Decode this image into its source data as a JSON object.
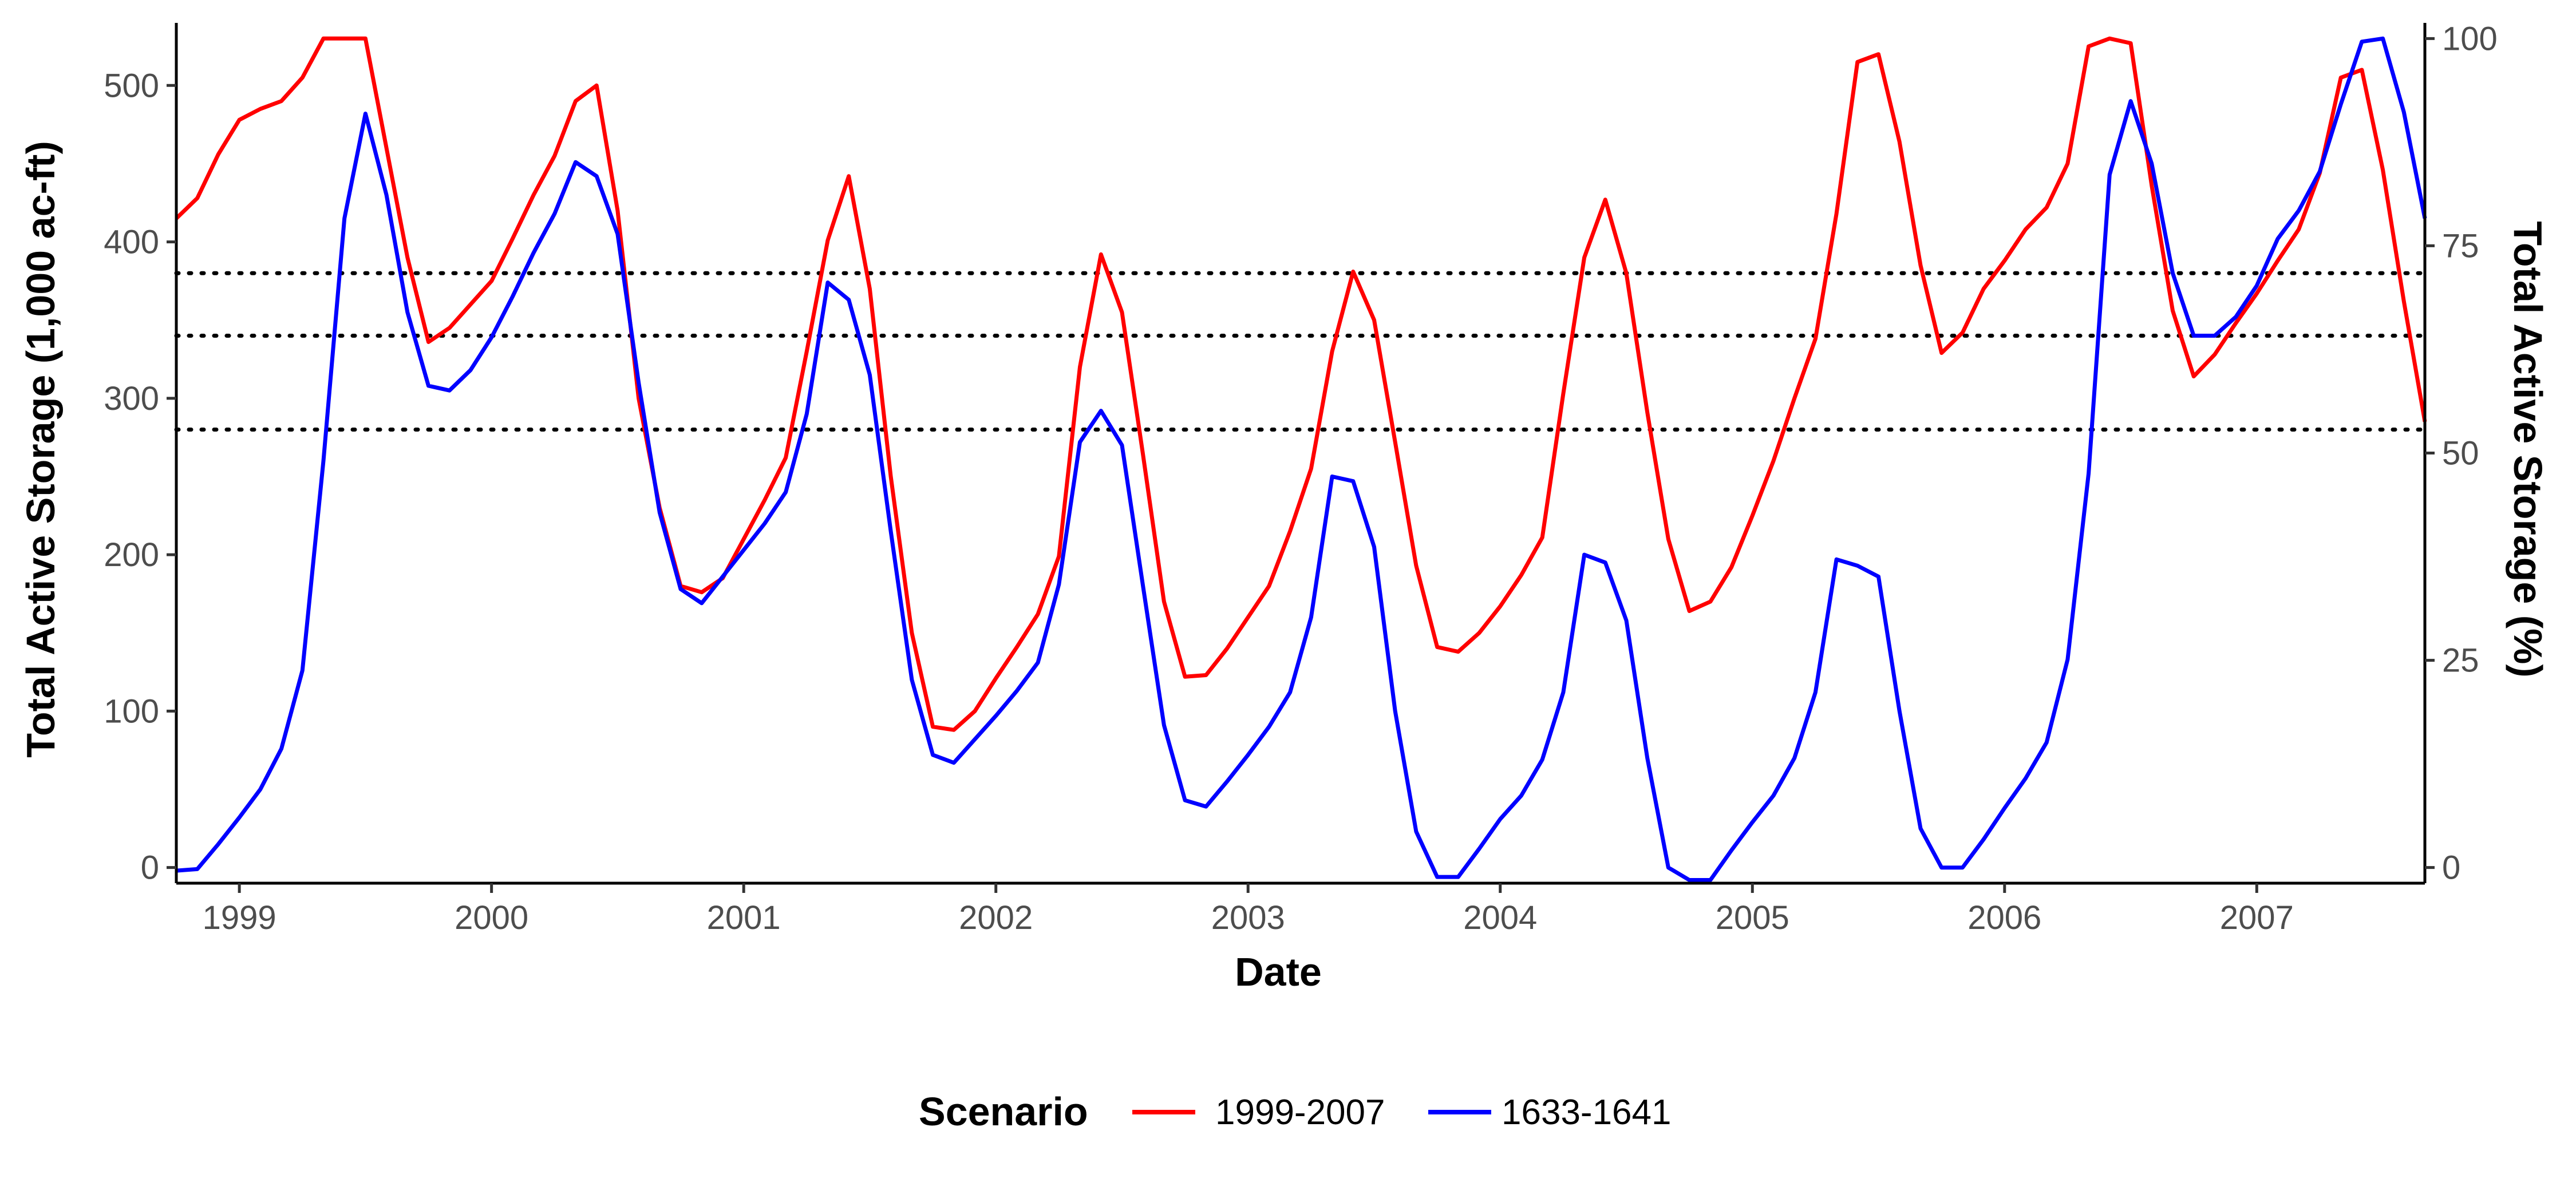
{
  "chart_data": {
    "type": "line",
    "title": "",
    "xlabel": "Date",
    "ylabel": "Total Active Storage (1,000 ac-ft)",
    "ylabel_right": "Total Active Storage (%)",
    "x_ticks": [
      "1999",
      "2000",
      "2001",
      "2002",
      "2003",
      "2004",
      "2005",
      "2006",
      "2007"
    ],
    "y_ticks": [
      0,
      100,
      200,
      300,
      400,
      500
    ],
    "y_ticks_right": [
      0,
      25,
      50,
      75,
      100
    ],
    "xlim": [
      "1998-10",
      "2007-09"
    ],
    "ylim": [
      -10,
      540
    ],
    "ylim_right_note": "100% = 530 (1,000 ac-ft)",
    "reference_lines": [
      380,
      340,
      280
    ],
    "grid": false,
    "legend_title": "Scenario",
    "legend_position": "bottom",
    "series": [
      {
        "name": "1999-2007",
        "color": "#ff0000",
        "start": "1998-10",
        "values": [
          415,
          428,
          456,
          478,
          485,
          490,
          505,
          530,
          530,
          530,
          460,
          390,
          336,
          345,
          360,
          375,
          402,
          430,
          455,
          490,
          500,
          420,
          300,
          230,
          180,
          176,
          185,
          210,
          235,
          262,
          330,
          401,
          442,
          370,
          250,
          150,
          90,
          88,
          100,
          121,
          141,
          162,
          199,
          320,
          392,
          355,
          264,
          170,
          122,
          123,
          140,
          160,
          180,
          215,
          255,
          330,
          381,
          350,
          272,
          193,
          141,
          138,
          150,
          167,
          187,
          211,
          303,
          390,
          427,
          380,
          291,
          210,
          164,
          170,
          192,
          225,
          260,
          300,
          338,
          418,
          515,
          520,
          464,
          385,
          329,
          342,
          370,
          388,
          408,
          422,
          450,
          525,
          530,
          527,
          436,
          356,
          314,
          328,
          348,
          367,
          388,
          408,
          444,
          505,
          510,
          446,
          362,
          285
        ]
      },
      {
        "name": "1633-1641",
        "color": "#0000ff",
        "start": "1998-10",
        "values": [
          -2,
          -1,
          15,
          32,
          50,
          76,
          126,
          260,
          415,
          482,
          430,
          355,
          308,
          305,
          318,
          339,
          365,
          393,
          418,
          451,
          442,
          405,
          310,
          227,
          178,
          169,
          186,
          203,
          220,
          240,
          290,
          374,
          363,
          315,
          215,
          120,
          72,
          67,
          82,
          97,
          113,
          131,
          181,
          272,
          292,
          270,
          180,
          91,
          43,
          39,
          55,
          72,
          90,
          112,
          160,
          250,
          247,
          205,
          100,
          23,
          -6,
          -6,
          12,
          31,
          46,
          69,
          112,
          200,
          195,
          158,
          70,
          0,
          -8,
          -8,
          11,
          29,
          46,
          70,
          112,
          197,
          193,
          186,
          100,
          25,
          0,
          0,
          18,
          38,
          57,
          80,
          133,
          252,
          443,
          490,
          450,
          380,
          340,
          340,
          352,
          372,
          402,
          420,
          445,
          488,
          528,
          530,
          483,
          415
        ]
      }
    ]
  }
}
